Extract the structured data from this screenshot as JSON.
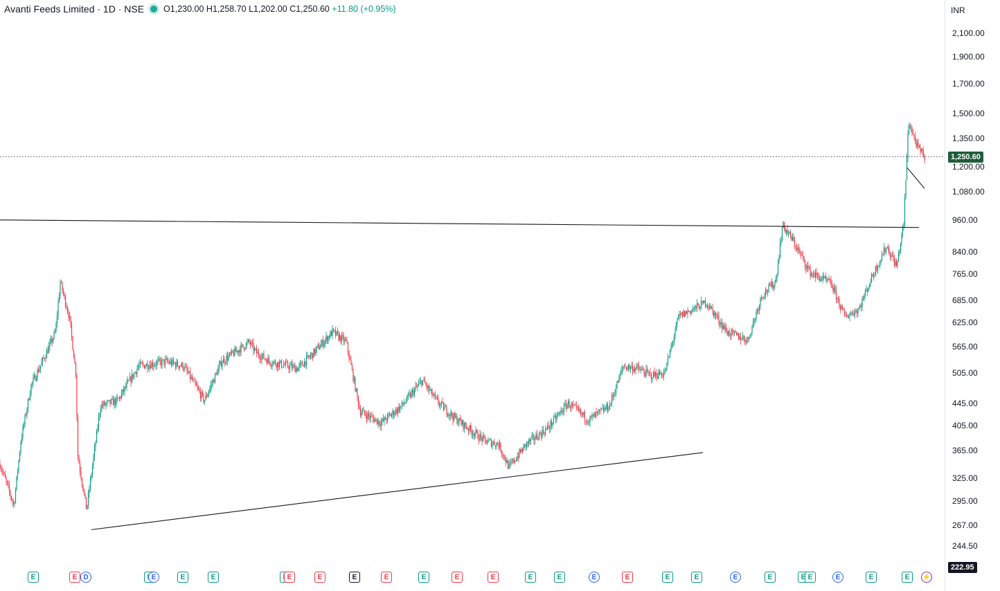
{
  "legend": {
    "symbol": "Avanti Feeds Limited · 1D · NSE",
    "open": "O1,230.00",
    "high": "H1,258.70",
    "low": "L1,202.00",
    "close": "C1,250.60",
    "change": "+11.80 (+0.95%)"
  },
  "price_axis": {
    "unit": "INR",
    "current_price": "1,250.60",
    "bottom_value": "222.95",
    "ticks": [
      "2,100.00",
      "1,900.00",
      "1,700.00",
      "1,500.00",
      "1,350.00",
      "1,200.00",
      "1,080.00",
      "960.00",
      "840.00",
      "765.00",
      "685.00",
      "625.00",
      "565.00",
      "505.00",
      "445.00",
      "405.00",
      "365.00",
      "325.00",
      "295.00",
      "267.00",
      "244.50"
    ]
  },
  "colors": {
    "up": "#089981",
    "down": "#f23645",
    "trendline": "#131722",
    "price_tag_bg": "#1e5c3c"
  },
  "chart_data": {
    "type": "candlestick",
    "scale": "log",
    "ylim": [
      222.95,
      2250
    ],
    "last_close": 1250.6,
    "approx_price_path": [
      [
        0,
        345
      ],
      [
        0.02,
        290
      ],
      [
        0.03,
        380
      ],
      [
        0.045,
        480
      ],
      [
        0.07,
        560
      ],
      [
        0.08,
        600
      ],
      [
        0.087,
        740
      ],
      [
        0.1,
        640
      ],
      [
        0.11,
        500
      ],
      [
        0.112,
        360
      ],
      [
        0.125,
        285
      ],
      [
        0.145,
        440
      ],
      [
        0.17,
        450
      ],
      [
        0.2,
        520
      ],
      [
        0.24,
        530
      ],
      [
        0.265,
        520
      ],
      [
        0.295,
        450
      ],
      [
        0.32,
        530
      ],
      [
        0.36,
        575
      ],
      [
        0.37,
        550
      ],
      [
        0.39,
        530
      ],
      [
        0.43,
        515
      ],
      [
        0.45,
        545
      ],
      [
        0.48,
        600
      ],
      [
        0.5,
        575
      ],
      [
        0.52,
        430
      ],
      [
        0.55,
        410
      ],
      [
        0.58,
        440
      ],
      [
        0.61,
        490
      ],
      [
        0.63,
        450
      ],
      [
        0.655,
        420
      ],
      [
        0.7,
        380
      ],
      [
        0.72,
        375
      ],
      [
        0.735,
        340
      ],
      [
        0.76,
        375
      ],
      [
        0.79,
        400
      ],
      [
        0.82,
        445
      ],
      [
        0.85,
        415
      ],
      [
        0.88,
        440
      ],
      [
        0.9,
        520
      ],
      [
        0.92,
        515
      ],
      [
        0.94,
        500
      ],
      [
        0.96,
        505
      ],
      [
        0.98,
        640
      ],
      [
        1.02,
        680
      ],
      [
        1.05,
        600
      ],
      [
        1.08,
        580
      ],
      [
        1.1,
        700
      ],
      [
        1.12,
        740
      ],
      [
        1.13,
        940
      ],
      [
        1.145,
        880
      ],
      [
        1.17,
        770
      ],
      [
        1.2,
        735
      ],
      [
        1.22,
        640
      ],
      [
        1.24,
        660
      ],
      [
        1.26,
        760
      ],
      [
        1.28,
        860
      ],
      [
        1.295,
        790
      ],
      [
        1.305,
        950
      ],
      [
        1.312,
        1450
      ],
      [
        1.325,
        1300
      ],
      [
        1.335,
        1250.6
      ]
    ],
    "trendlines": [
      {
        "from": [
          0.0,
          960
        ],
        "to": [
          1.327,
          930
        ]
      },
      {
        "from": [
          0.132,
          262
        ],
        "to": [
          1.015,
          362
        ]
      },
      {
        "from": [
          1.31,
          1195
        ],
        "to": [
          1.335,
          1095
        ]
      }
    ],
    "event_markers": [
      {
        "label": "E",
        "style": "green"
      },
      {
        "label": "E",
        "style": "red"
      },
      {
        "label": "D",
        "style": "blue"
      },
      {
        "label": "E",
        "style": "green"
      },
      {
        "label": "E",
        "style": "blue"
      },
      {
        "label": "E",
        "style": "green"
      },
      {
        "label": "E",
        "style": "green"
      },
      {
        "label": "E",
        "style": "green"
      },
      {
        "label": "E",
        "style": "red"
      },
      {
        "label": "E",
        "style": "red"
      },
      {
        "label": "E",
        "style": "gray"
      },
      {
        "label": "E",
        "style": "red"
      },
      {
        "label": "E",
        "style": "green"
      },
      {
        "label": "E",
        "style": "red"
      },
      {
        "label": "E",
        "style": "red"
      },
      {
        "label": "E",
        "style": "green"
      },
      {
        "label": "E",
        "style": "green"
      },
      {
        "label": "E",
        "style": "blue"
      },
      {
        "label": "E",
        "style": "red"
      },
      {
        "label": "E",
        "style": "green"
      },
      {
        "label": "E",
        "style": "green"
      },
      {
        "label": "E",
        "style": "blue"
      },
      {
        "label": "E",
        "style": "green"
      },
      {
        "label": "E",
        "style": "green"
      },
      {
        "label": "E",
        "style": "green"
      },
      {
        "label": "E",
        "style": "blue"
      },
      {
        "label": "E",
        "style": "green"
      },
      {
        "label": "E",
        "style": "green"
      },
      {
        "label": "⚡",
        "style": "purple"
      }
    ]
  }
}
